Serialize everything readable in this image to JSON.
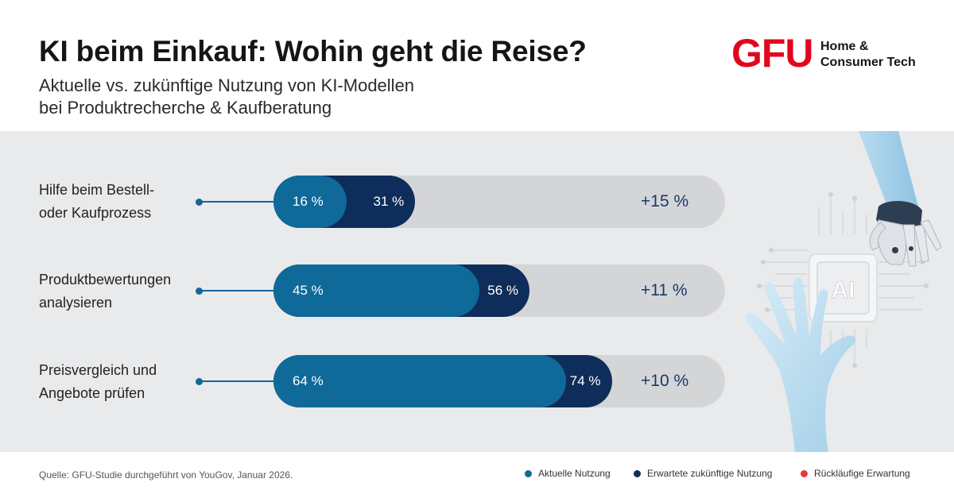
{
  "header": {
    "title": "KI beim Einkauf: Wohin geht die Reise?",
    "subtitle_line1": "Aktuelle vs. zukünftige Nutzung von KI-Modellen",
    "subtitle_line2": "bei Produktrecherche & Kaufberatung"
  },
  "logo": {
    "mark": "GFU",
    "line1": "Home &",
    "line2": "Consumer Tech",
    "brand_color": "#e3051b"
  },
  "illustration": {
    "chip_label": "AI",
    "description_icon": "robot-hand-and-human-hand-icon"
  },
  "colors": {
    "current": "#0f6a99",
    "expected": "#0f2d5a",
    "declining": "#e23a3a",
    "track": "#d4d5d7"
  },
  "chart_data": {
    "type": "bar",
    "orientation": "horizontal",
    "stacked_overlay": true,
    "categories": [
      [
        "Hilfe beim Bestell-",
        "oder Kaufprozess"
      ],
      [
        "Produktbewertungen",
        "analysieren"
      ],
      [
        "Preisvergleich und",
        "Angebote prüfen"
      ]
    ],
    "series": [
      {
        "name": "Aktuelle Nutzung",
        "values": [
          16,
          45,
          64
        ],
        "labels": [
          "16 %",
          "45 %",
          "64 %"
        ]
      },
      {
        "name": "Erwartete zukünftige Nutzung",
        "values": [
          31,
          56,
          74
        ],
        "labels": [
          "31 %",
          "56 %",
          "74 %"
        ]
      }
    ],
    "deltas": [
      "+15 %",
      "+11 %",
      "+10 %"
    ],
    "xlim": [
      0,
      100
    ],
    "grid": false,
    "legend_position": "bottom-right"
  },
  "footer": {
    "source": "Quelle: GFU-Studie durchgeführt von YouGov, Januar 2026.",
    "legend": [
      {
        "label": "Aktuelle Nutzung",
        "color": "#0f6a99"
      },
      {
        "label": "Erwartete zukünftige Nutzung",
        "color": "#0f2d5a"
      },
      {
        "label": "Rückläufige Erwartung",
        "color": "#e23a3a"
      }
    ]
  }
}
